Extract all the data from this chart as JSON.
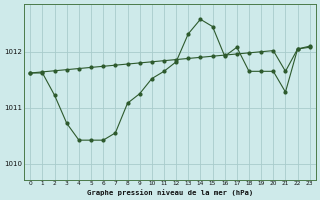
{
  "title": "Graphe pression niveau de la mer (hPa)",
  "bg_color": "#ceeaea",
  "grid_color": "#a8cccc",
  "line_color": "#2d5a2d",
  "x_labels": [
    "0",
    "1",
    "2",
    "3",
    "4",
    "5",
    "6",
    "7",
    "8",
    "9",
    "10",
    "11",
    "12",
    "13",
    "14",
    "15",
    "16",
    "17",
    "18",
    "19",
    "20",
    "21",
    "22",
    "23"
  ],
  "ylim": [
    1009.7,
    1012.85
  ],
  "yticks": [
    1010,
    1011,
    1012
  ],
  "hours": [
    0,
    1,
    2,
    3,
    4,
    5,
    6,
    7,
    8,
    9,
    10,
    11,
    12,
    13,
    14,
    15,
    16,
    17,
    18,
    19,
    20,
    21,
    22,
    23
  ],
  "pressure_zigzag": [
    1011.62,
    1011.62,
    1011.22,
    1010.72,
    1010.42,
    1010.42,
    1010.42,
    1010.55,
    1011.08,
    1011.25,
    1011.52,
    1011.65,
    1011.82,
    1012.32,
    1012.58,
    1012.45,
    1011.92,
    1012.08,
    1011.65,
    1011.65,
    1011.65,
    1011.28,
    1012.05,
    1012.08
  ],
  "pressure_smooth": [
    1011.62,
    1011.64,
    1011.66,
    1011.68,
    1011.7,
    1011.72,
    1011.74,
    1011.76,
    1011.78,
    1011.8,
    1011.82,
    1011.84,
    1011.86,
    1011.88,
    1011.9,
    1011.92,
    1011.94,
    1011.96,
    1011.98,
    1012.0,
    1012.02,
    1011.65,
    1012.05,
    1012.1
  ]
}
